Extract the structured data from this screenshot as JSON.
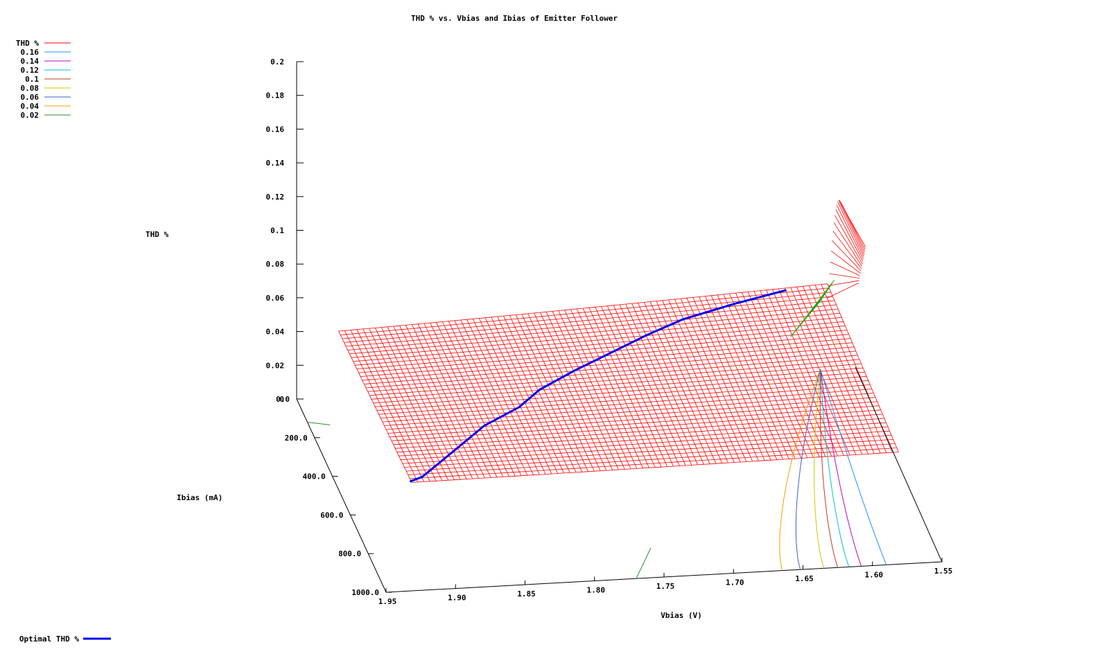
{
  "chart_data": {
    "type": "surface-3d",
    "title": "THD % vs. Vbias and Ibias of Emitter Follower",
    "xlabel": "Vbias (V)",
    "ylabel": "Ibias (mA)",
    "zlabel": "THD %",
    "xlim": [
      1.55,
      1.95
    ],
    "ylim": [
      0,
      1000
    ],
    "zlim": [
      0,
      0.2
    ],
    "x_ticks": [
      "1.95",
      "1.90",
      "1.85",
      "1.80",
      "1.75",
      "1.70",
      "1.65",
      "1.60",
      "1.55"
    ],
    "y_ticks": [
      "0.0",
      "200.0",
      "400.0",
      "600.0",
      "800.0",
      "1000.0"
    ],
    "z_ticks": [
      "0",
      "0.02",
      "0.04",
      "0.06",
      "0.08",
      "0.1",
      "0.12",
      "0.14",
      "0.16",
      "0.18",
      "0.2"
    ],
    "legend_position": "top-left",
    "surface_legend": {
      "name": "THD %",
      "color": "#ff0000"
    },
    "contour_levels": [
      {
        "label": "0.16",
        "color": "#1e90ff"
      },
      {
        "label": "0.14",
        "color": "#c000c0"
      },
      {
        "label": "0.12",
        "color": "#00c0d0"
      },
      {
        "label": "0.1",
        "color": "#c0392b"
      },
      {
        "label": "0.08",
        "color": "#c8c800"
      },
      {
        "label": "0.06",
        "color": "#3a5fcd"
      },
      {
        "label": "0.04",
        "color": "#f0a000"
      },
      {
        "label": "0.02",
        "color": "#2e8b2e"
      }
    ],
    "series": [
      {
        "name": "Optimal THD %",
        "color": "#0000ee",
        "points": [
          {
            "vbias": 1.92,
            "ibias": 800,
            "thd": 0.0
          },
          {
            "vbias": 1.91,
            "ibias": 780,
            "thd": 0.004
          },
          {
            "vbias": 1.89,
            "ibias": 700,
            "thd": 0.008
          },
          {
            "vbias": 1.87,
            "ibias": 620,
            "thd": 0.012
          },
          {
            "vbias": 1.85,
            "ibias": 540,
            "thd": 0.016
          },
          {
            "vbias": 1.82,
            "ibias": 460,
            "thd": 0.02
          },
          {
            "vbias": 1.8,
            "ibias": 380,
            "thd": 0.024
          },
          {
            "vbias": 1.77,
            "ibias": 300,
            "thd": 0.027
          },
          {
            "vbias": 1.74,
            "ibias": 230,
            "thd": 0.03
          },
          {
            "vbias": 1.71,
            "ibias": 160,
            "thd": 0.033
          },
          {
            "vbias": 1.68,
            "ibias": 100,
            "thd": 0.035
          },
          {
            "vbias": 1.64,
            "ibias": 50,
            "thd": 0.037
          },
          {
            "vbias": 1.6,
            "ibias": 10,
            "thd": 0.039
          }
        ]
      }
    ]
  }
}
